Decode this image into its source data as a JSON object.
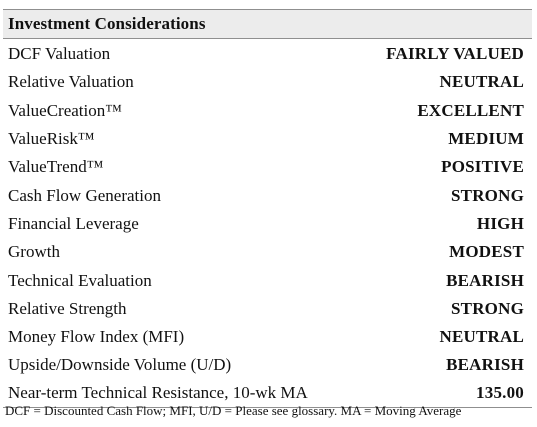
{
  "panel": {
    "title": "Investment Considerations",
    "rows": [
      {
        "label": "DCF Valuation",
        "value": "FAIRLY VALUED"
      },
      {
        "label": "Relative Valuation",
        "value": "NEUTRAL"
      },
      {
        "label": "ValueCreation™",
        "value": "EXCELLENT"
      },
      {
        "label": "ValueRisk™",
        "value": "MEDIUM"
      },
      {
        "label": "ValueTrend™",
        "value": "POSITIVE"
      },
      {
        "label": "Cash Flow Generation",
        "value": "STRONG"
      },
      {
        "label": "Financial Leverage",
        "value": "HIGH"
      },
      {
        "label": "Growth",
        "value": "MODEST"
      },
      {
        "label": "Technical Evaluation",
        "value": "BEARISH"
      },
      {
        "label": "Relative Strength",
        "value": "STRONG"
      },
      {
        "label": "Money Flow Index (MFI)",
        "value": "NEUTRAL"
      },
      {
        "label": "Upside/Downside Volume (U/D)",
        "value": "BEARISH"
      },
      {
        "label": "Near-term Technical Resistance, 10-wk MA",
        "value": "135.00"
      }
    ],
    "footnote": "DCF = Discounted Cash Flow; MFI, U/D = Please see glossary. MA = Moving Average"
  }
}
